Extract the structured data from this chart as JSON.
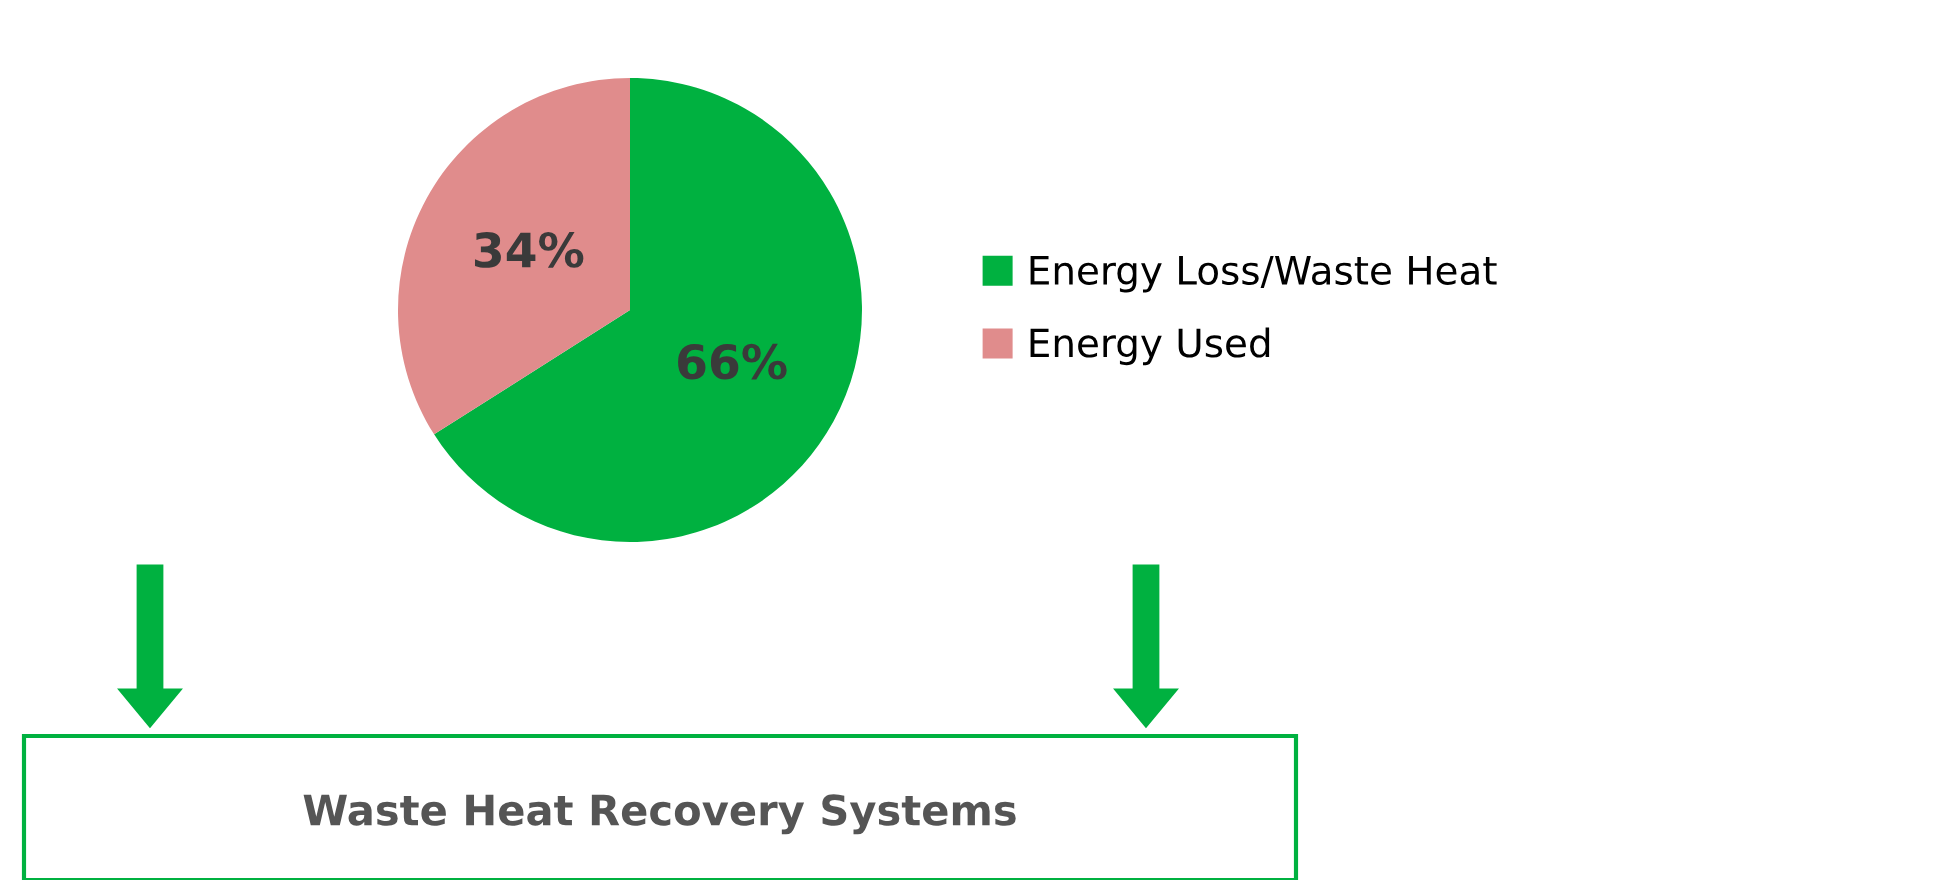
{
  "chart_data": {
    "type": "pie",
    "categories": [
      "Energy Loss/Waste Heat",
      "Energy Used"
    ],
    "values": [
      66,
      34
    ],
    "colors": [
      "#00b140",
      "#e08c8c"
    ],
    "value_labels": [
      "66%",
      "34%"
    ],
    "legend": "right",
    "annotations": [
      "Waste Heat Recovery Systems"
    ]
  }
}
